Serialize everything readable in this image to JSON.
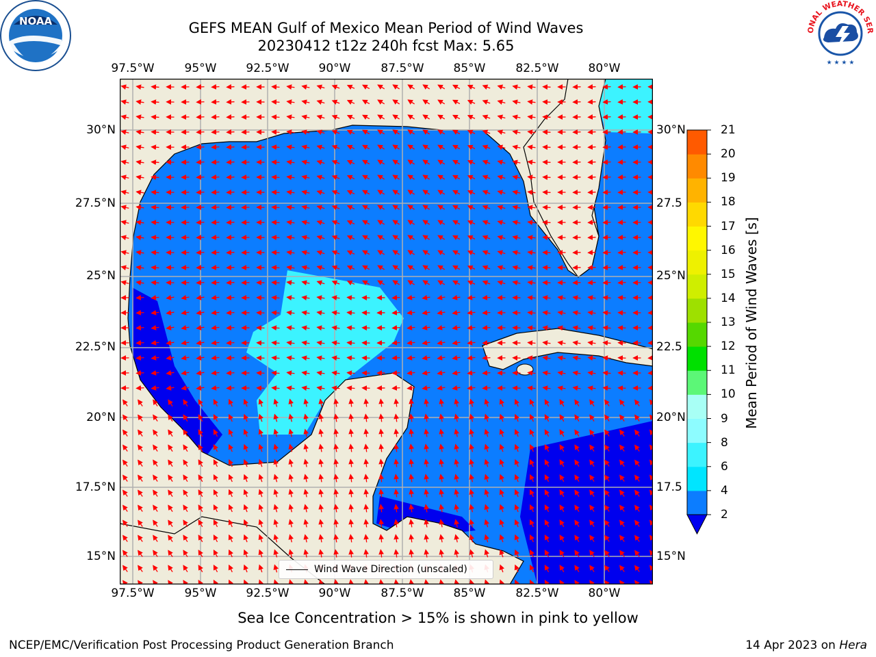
{
  "header": {
    "title_line1": "GEFS MEAN Gulf of Mexico Mean Period of Wind Waves",
    "title_line2": "20230412 t12z 240h fcst   Max: 5.65"
  },
  "logos": {
    "noaa_text": "NOAA",
    "nws_text": "NATIONAL WEATHER SERVICE"
  },
  "map": {
    "lon_labels": [
      "97.5°W",
      "95°W",
      "92.5°W",
      "90°W",
      "87.5°W",
      "85°W",
      "82.5°W",
      "80°W"
    ],
    "lat_labels_left": [
      "30°N",
      "27.5°N",
      "25°N",
      "22.5°N",
      "20°N",
      "17.5°N",
      "15°N"
    ],
    "lat_labels_right": [
      "30°N",
      "27.5",
      "25°N",
      "22.5",
      "20°N",
      "17.5",
      "15°N"
    ],
    "legend_label": "Wind Wave Direction (unscaled)"
  },
  "colorbar": {
    "title": "Mean Period of Wind Waves [s]",
    "labels": [
      "2",
      "4",
      "6",
      "8",
      "9",
      "10",
      "11",
      "12",
      "13",
      "14",
      "15",
      "16",
      "17",
      "18",
      "19",
      "20",
      "21"
    ],
    "colors": [
      "#0c7dff",
      "#00e5ff",
      "#3cf3ff",
      "#8dfcff",
      "#a8fff5",
      "#5cf777",
      "#00e000",
      "#55d800",
      "#9ee000",
      "#cfee00",
      "#eef100",
      "#fff700",
      "#ffd900",
      "#ffb300",
      "#ff8a00",
      "#ff5a00",
      "#ff2200"
    ],
    "extend_color": "#0000ee"
  },
  "colors": {
    "land": "#efecdb",
    "ocean_low": "#0000ee",
    "ocean_mid": "#0c7dff",
    "ocean_high": "#3cf3ff",
    "arrow": "#ff0000"
  },
  "footer": {
    "note": "Sea Ice Concentration > 15% is shown in pink to yellow",
    "left": "NCEP/EMC/Verification Post Processing Product Generation Branch",
    "right_date": "14 Apr 2023 on ",
    "right_host": "Hera"
  }
}
